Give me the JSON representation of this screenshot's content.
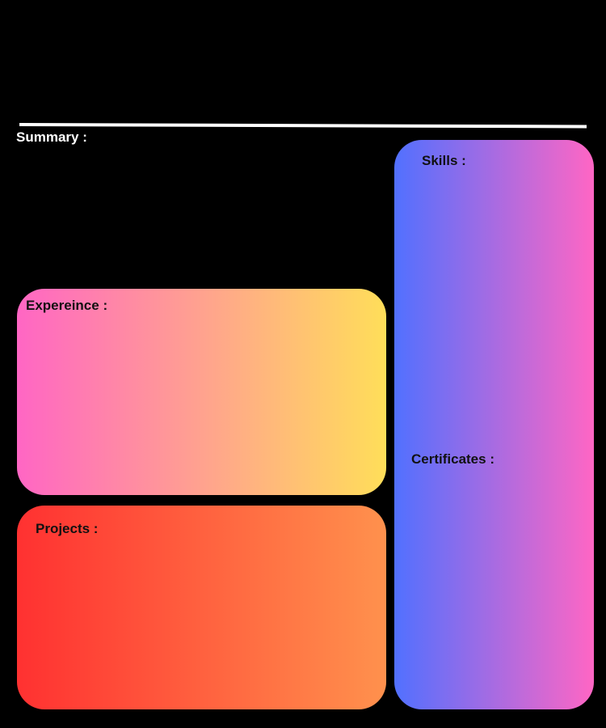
{
  "header": {
    "summary_label": "Summary :"
  },
  "sections": {
    "experience_label": "Expereince :",
    "projects_label": "Projects :",
    "skills_label": "Skills :",
    "certificates_label": "Certificates :"
  },
  "colors": {
    "background": "#000000",
    "divider": "#ffffff",
    "experience_gradient": [
      "#ff66c4",
      "#ffde59"
    ],
    "projects_gradient": [
      "#ff3131",
      "#ff914d"
    ],
    "skills_gradient": [
      "#5170ff",
      "#ff66c4"
    ]
  }
}
